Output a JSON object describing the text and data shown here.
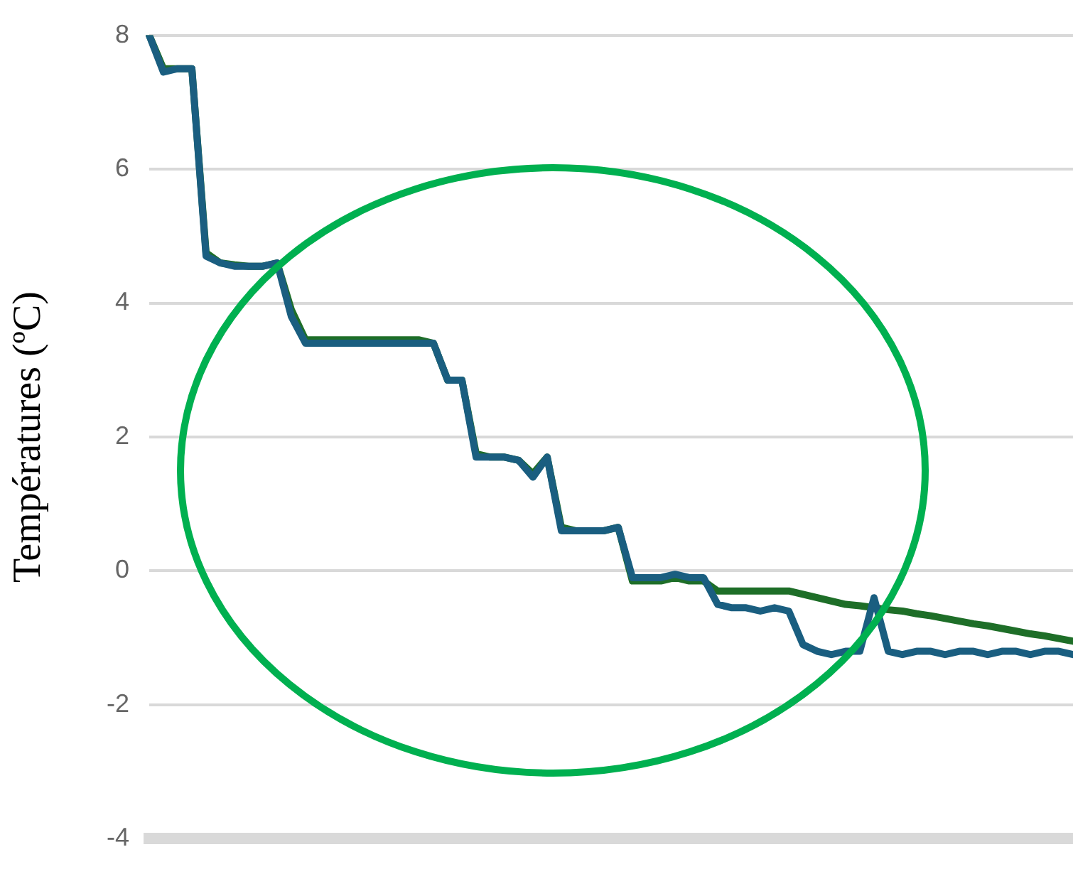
{
  "chart_data": {
    "type": "line",
    "ylabel": "Températures (ºC)",
    "categories": [
      null,
      null,
      null,
      null,
      null,
      null,
      null,
      null,
      null,
      null,
      null,
      null,
      null,
      null,
      null,
      null,
      null,
      null,
      null,
      null,
      null,
      null,
      null,
      null,
      null,
      null,
      null,
      null,
      null,
      null,
      null,
      null,
      null,
      null,
      null,
      null,
      null,
      null,
      null,
      null,
      null,
      null,
      null,
      null,
      null,
      null,
      null,
      null,
      null,
      null,
      null,
      null,
      null,
      null,
      null,
      null,
      null,
      null,
      null,
      null,
      null,
      null,
      null,
      null,
      null,
      null
    ],
    "series": [
      {
        "color": "#1a5e80",
        "values": [
          8.0,
          7.45,
          7.5,
          7.5,
          4.7,
          4.6,
          4.55,
          4.55,
          4.55,
          4.6,
          3.8,
          3.4,
          3.4,
          3.4,
          3.4,
          3.4,
          3.4,
          3.4,
          3.4,
          3.4,
          3.4,
          2.85,
          2.85,
          1.7,
          1.7,
          1.7,
          1.65,
          1.4,
          1.7,
          0.6,
          0.6,
          0.6,
          0.6,
          0.65,
          -0.1,
          -0.1,
          -0.1,
          -0.05,
          -0.1,
          -0.1,
          -0.5,
          -0.55,
          -0.55,
          -0.6,
          -0.55,
          -0.6,
          -1.1,
          -1.2,
          -1.25,
          -1.2,
          -1.2,
          -0.4,
          -1.2,
          -1.25,
          -1.2,
          -1.2,
          -1.25,
          -1.2,
          -1.2,
          -1.25,
          -1.2,
          -1.2,
          -1.25,
          -1.2,
          -1.2,
          -1.25
        ]
      },
      {
        "color": "#1e6e28",
        "values": [
          8.0,
          7.5,
          7.5,
          7.5,
          4.75,
          4.6,
          4.57,
          4.55,
          4.55,
          4.6,
          3.9,
          3.45,
          3.45,
          3.45,
          3.45,
          3.45,
          3.45,
          3.45,
          3.45,
          3.45,
          3.4,
          2.85,
          2.85,
          1.75,
          1.7,
          1.7,
          1.65,
          1.45,
          1.7,
          0.65,
          0.6,
          0.6,
          0.6,
          0.65,
          -0.15,
          -0.15,
          -0.15,
          -0.1,
          -0.15,
          -0.15,
          -0.3,
          -0.3,
          -0.3,
          -0.3,
          -0.3,
          -0.3,
          -0.35,
          -0.4,
          -0.45,
          -0.5,
          -0.52,
          -0.55,
          -0.58,
          -0.6,
          -0.64,
          -0.67,
          -0.71,
          -0.75,
          -0.79,
          -0.82,
          -0.86,
          -0.9,
          -0.94,
          -0.97,
          -1.01,
          -1.05
        ]
      }
    ],
    "ylim": [
      -4,
      8
    ],
    "yticks": [
      -4,
      -2,
      0,
      2,
      4,
      6,
      8
    ],
    "grid": "y",
    "legend": false,
    "tick_labels": "y",
    "marker": "none",
    "line_style": "solid"
  }
}
